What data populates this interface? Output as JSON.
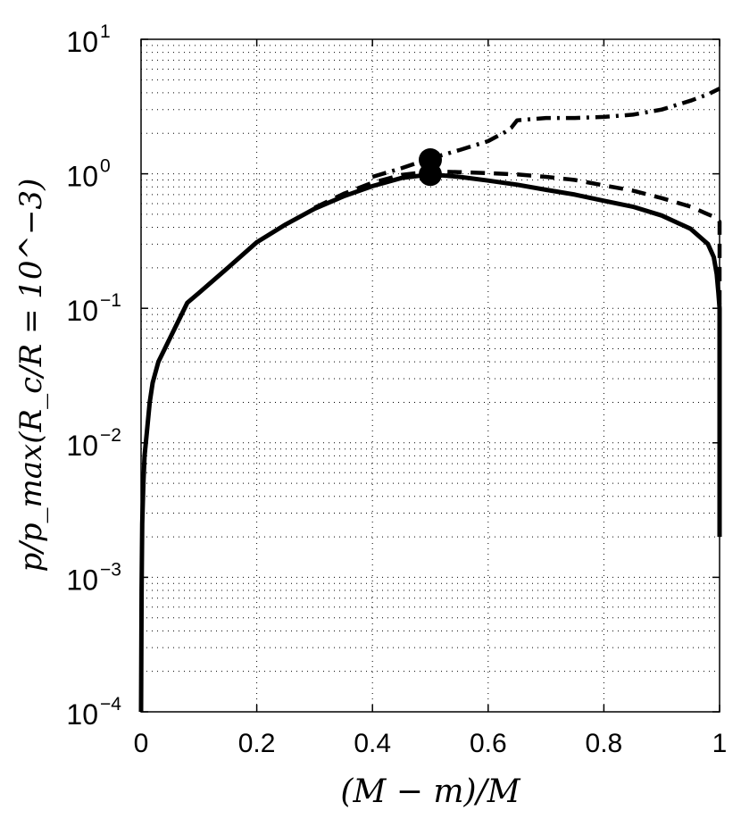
{
  "chart_data": {
    "type": "line",
    "xlabel": "(M − m)/M",
    "ylabel": "p/p_max(R_c/R = 10^−3)",
    "xlim": [
      0,
      1
    ],
    "ylim": [
      0.0001,
      10
    ],
    "y_scale": "log",
    "grid": true,
    "x_ticks": [
      "0",
      "0.2",
      "0.4",
      "0.6",
      "0.8",
      "1"
    ],
    "x_tick_values": [
      0,
      0.2,
      0.4,
      0.6,
      0.8,
      1
    ],
    "y_ticks": [
      {
        "base": "10",
        "exp": "−4",
        "value": 0.0001
      },
      {
        "base": "10",
        "exp": "−3",
        "value": 0.001
      },
      {
        "base": "10",
        "exp": "−2",
        "value": 0.01
      },
      {
        "base": "10",
        "exp": "−1",
        "value": 0.1
      },
      {
        "base": "10",
        "exp": "0",
        "value": 1
      },
      {
        "base": "10",
        "exp": "1",
        "value": 10
      }
    ],
    "series": [
      {
        "style": "solid",
        "color": "#000000",
        "x": [
          0.0,
          0.001,
          0.002,
          0.004,
          0.006,
          0.01,
          0.015,
          0.02,
          0.03,
          0.05,
          0.08,
          0.1,
          0.15,
          0.2,
          0.25,
          0.3,
          0.35,
          0.4,
          0.45,
          0.5,
          0.55,
          0.6,
          0.65,
          0.7,
          0.75,
          0.8,
          0.85,
          0.9,
          0.95,
          0.98,
          0.99,
          0.995,
          0.998,
          1.0,
          1.0
        ],
        "y": [
          0.0001,
          0.0008,
          0.0025,
          0.005,
          0.008,
          0.012,
          0.02,
          0.028,
          0.04,
          0.06,
          0.11,
          0.13,
          0.2,
          0.31,
          0.42,
          0.55,
          0.68,
          0.81,
          0.93,
          0.99,
          0.95,
          0.89,
          0.83,
          0.76,
          0.7,
          0.63,
          0.57,
          0.49,
          0.39,
          0.3,
          0.24,
          0.18,
          0.13,
          0.1,
          0.002
        ]
      },
      {
        "style": "dashed",
        "color": "#000000",
        "x": [
          0.3,
          0.35,
          0.4,
          0.45,
          0.5,
          0.55,
          0.6,
          0.65,
          0.7,
          0.75,
          0.8,
          0.85,
          0.9,
          0.95,
          0.98,
          0.995,
          1.0,
          1.0
        ],
        "y": [
          0.56,
          0.71,
          0.86,
          0.98,
          1.04,
          1.03,
          1.01,
          0.99,
          0.95,
          0.9,
          0.82,
          0.75,
          0.66,
          0.57,
          0.5,
          0.47,
          0.44,
          0.002
        ]
      },
      {
        "style": "dashdot",
        "color": "#000000",
        "x": [
          0.4,
          0.45,
          0.5,
          0.55,
          0.6,
          0.63,
          0.64,
          0.65,
          0.7,
          0.75,
          0.8,
          0.85,
          0.9,
          0.95,
          0.98,
          1.0
        ],
        "y": [
          0.95,
          1.1,
          1.3,
          1.5,
          1.75,
          2.05,
          2.2,
          2.5,
          2.6,
          2.6,
          2.65,
          2.75,
          3.0,
          3.5,
          3.9,
          4.3
        ]
      }
    ],
    "markers": [
      {
        "x": 0.5,
        "y": 1.27
      },
      {
        "x": 0.5,
        "y": 0.99
      }
    ]
  }
}
